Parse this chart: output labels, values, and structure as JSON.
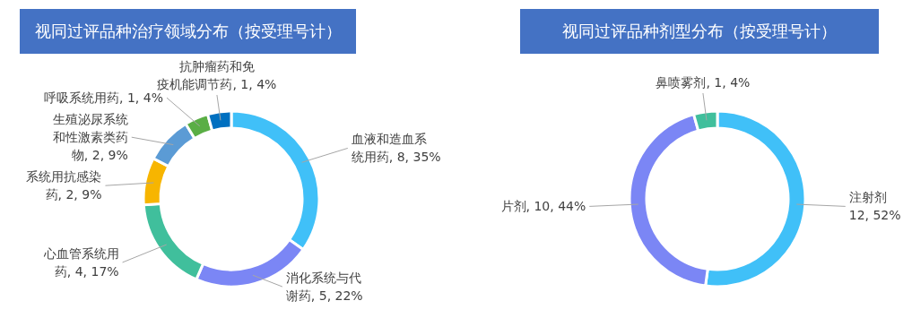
{
  "chart_data": [
    {
      "type": "donut",
      "title": "视同过评品种治疗领域分布（按受理号计）",
      "categories": [
        "血液和造血系统用药",
        "消化系统与代谢药",
        "心血管系统用药",
        "系统用抗感染药",
        "生殖泌尿系统和性激素类药物",
        "呼吸系统用药",
        "抗肿瘤药和免疫机能调节药"
      ],
      "values": [
        8,
        5,
        4,
        2,
        2,
        1,
        1
      ],
      "value_labels": [
        "8, 35%",
        "5, 22%",
        "4, 17%",
        "2, 9%",
        "2, 9%",
        "1, 4%",
        "1, 4%"
      ],
      "colors": [
        "#40c0f8",
        "#7b86f5",
        "#40bf9c",
        "#f7b500",
        "#5b9bd5",
        "#5aae45",
        "#0070c0"
      ]
    },
    {
      "type": "donut",
      "title": "视同过评品种剂型分布（按受理号计）",
      "categories": [
        "注射剂",
        "片剂",
        "鼻喷雾剂"
      ],
      "values": [
        12,
        10,
        1
      ],
      "value_labels": [
        "12, 52%",
        "10, 44%",
        "1, 4%"
      ],
      "colors": [
        "#40c0f8",
        "#7b86f5",
        "#40bf9c"
      ]
    }
  ]
}
